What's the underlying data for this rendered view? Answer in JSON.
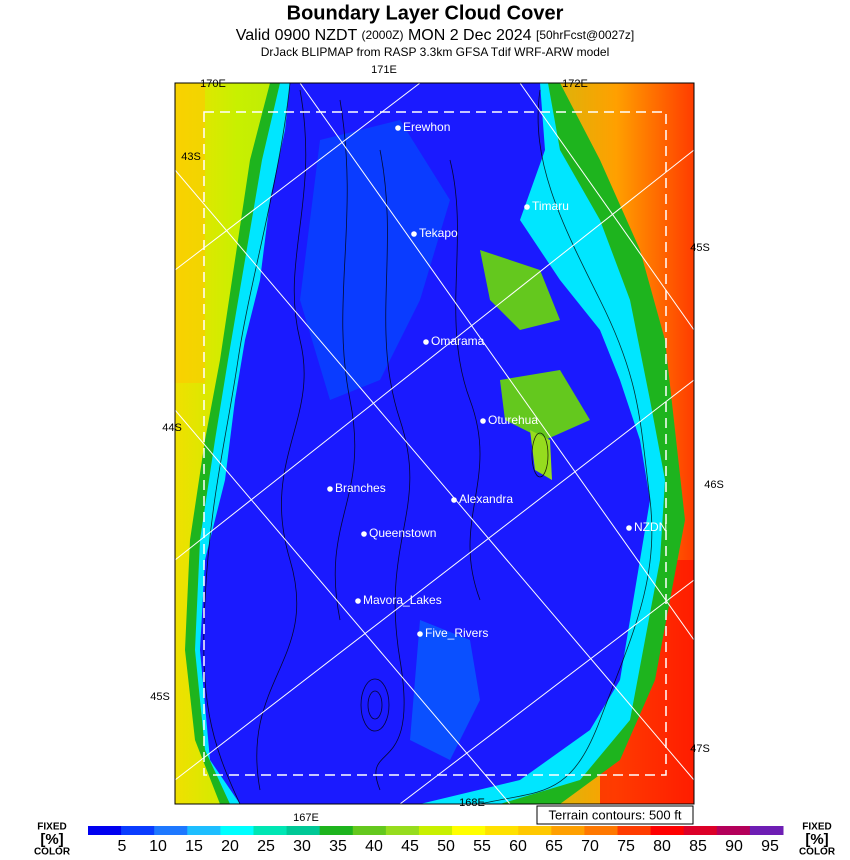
{
  "header": {
    "title": "Boundary Layer Cloud Cover",
    "valid": "Valid 0900 NZDT",
    "utc": "(2000Z)",
    "date": "MON 2 Dec 2024",
    "forecast": "[50hrFcst@0027z]",
    "model": "DrJack BLIPMAP from RASP 3.3km GFSA Tdif WRF-ARW model"
  },
  "map": {
    "places": [
      "Erewhon",
      "Timaru",
      "Tekapo",
      "Omarama",
      "Oturehua",
      "Branches",
      "Alexandra",
      "NZDN",
      "Queenstown",
      "Mavora_Lakes",
      "Five_Rivers"
    ],
    "grid_labels": [
      "170E",
      "171E",
      "172E",
      "43S",
      "45S",
      "44S",
      "46S",
      "45S",
      "47S",
      "167E",
      "168E"
    ],
    "contour_note": "Terrain contours: 500 ft"
  },
  "colorbar": {
    "ticks": [
      5,
      10,
      15,
      20,
      25,
      30,
      35,
      40,
      45,
      50,
      55,
      60,
      65,
      70,
      75,
      80,
      85,
      90,
      95
    ],
    "colors": [
      "#0000f0",
      "#0a3cff",
      "#1e78ff",
      "#1ebeff",
      "#00ffff",
      "#00e6b4",
      "#00c896",
      "#1eb41e",
      "#64c81e",
      "#96dc1e",
      "#c8f000",
      "#ffff00",
      "#ffe100",
      "#ffc800",
      "#ffa000",
      "#ff7800",
      "#ff3c00",
      "#ff0000",
      "#dc0028",
      "#b4005a",
      "#6e1eb4"
    ],
    "left_labels": [
      "FIXED",
      "[%]",
      "COLOR"
    ],
    "right_labels": [
      "FIXED",
      "[%]",
      "COLOR"
    ]
  }
}
